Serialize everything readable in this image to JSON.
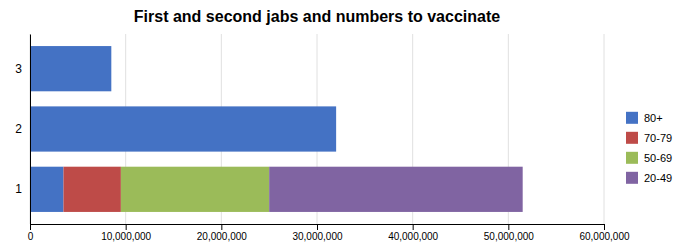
{
  "chart_data": {
    "type": "bar",
    "orientation": "horizontal",
    "stacked": true,
    "title": "First and second jabs and numbers to vaccinate",
    "categories": [
      "1",
      "2",
      "3"
    ],
    "series": [
      {
        "name": "80+",
        "color": "#4472C4",
        "values": [
          3500000,
          32000000,
          8500000
        ]
      },
      {
        "name": "70-79",
        "color": "#BE4B48",
        "values": [
          6000000,
          0,
          0
        ]
      },
      {
        "name": "50-69",
        "color": "#9BBB59",
        "values": [
          15500000,
          0,
          0
        ]
      },
      {
        "name": "20-49",
        "color": "#8064A2",
        "values": [
          26500000,
          0,
          0
        ]
      }
    ],
    "xlim": [
      0,
      60000000
    ],
    "xticks": [
      0,
      {
        "value": 10000000,
        "label": "10,000,000"
      },
      {
        "value": 20000000,
        "label": "20,000,000"
      },
      {
        "value": 30000000,
        "label": "30,000,000"
      },
      {
        "value": 40000000,
        "label": "40,000,000"
      },
      {
        "value": 50000000,
        "label": "50,000,000"
      },
      {
        "value": 60000000,
        "label": "60,000,000"
      }
    ],
    "grid": true,
    "legend": "right"
  }
}
